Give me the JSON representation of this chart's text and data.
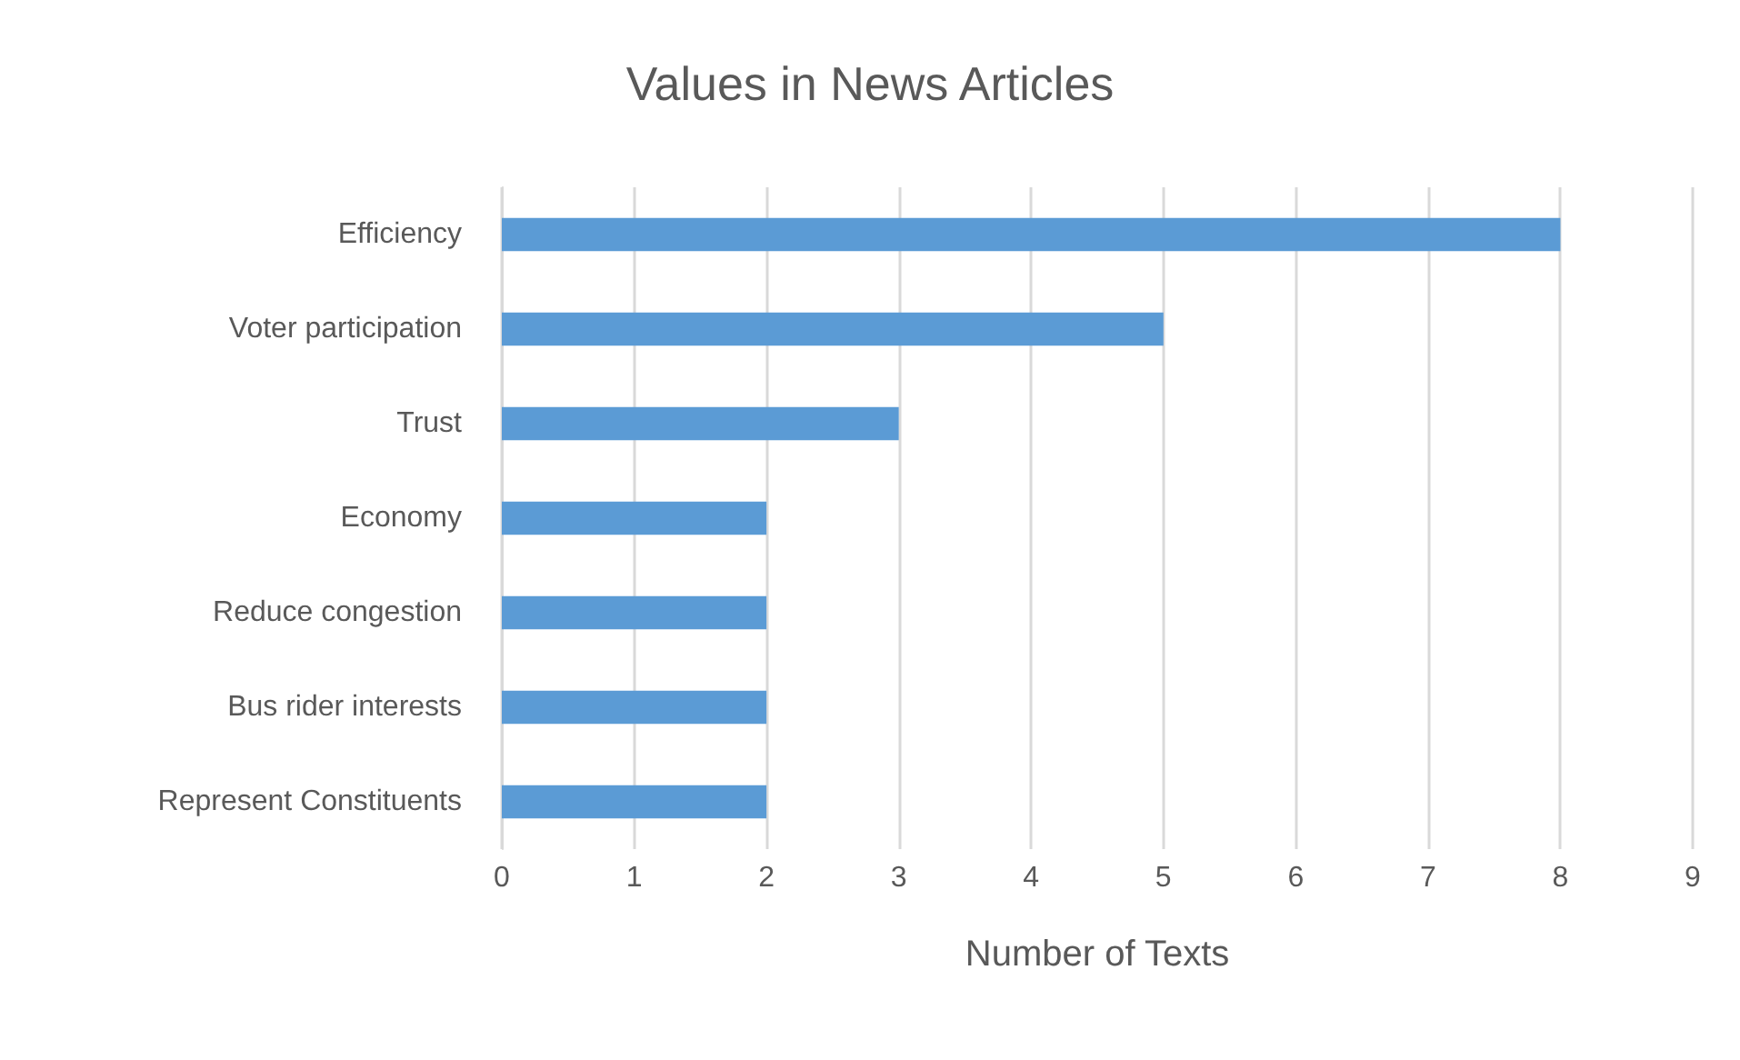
{
  "chart_data": {
    "type": "bar",
    "orientation": "horizontal",
    "title": "Values in News Articles",
    "xlabel": "Number of Texts",
    "categories": [
      "Efficiency",
      "Voter participation",
      "Trust",
      "Economy",
      "Reduce congestion",
      "Bus rider interests",
      "Represent Constituents"
    ],
    "values": [
      8,
      5,
      3,
      2,
      2,
      2,
      2
    ],
    "color": "#5b9bd5",
    "xlim": [
      0,
      9
    ],
    "xticks": [
      0,
      1,
      2,
      3,
      4,
      5,
      6,
      7,
      8,
      9
    ],
    "grid": "x"
  }
}
